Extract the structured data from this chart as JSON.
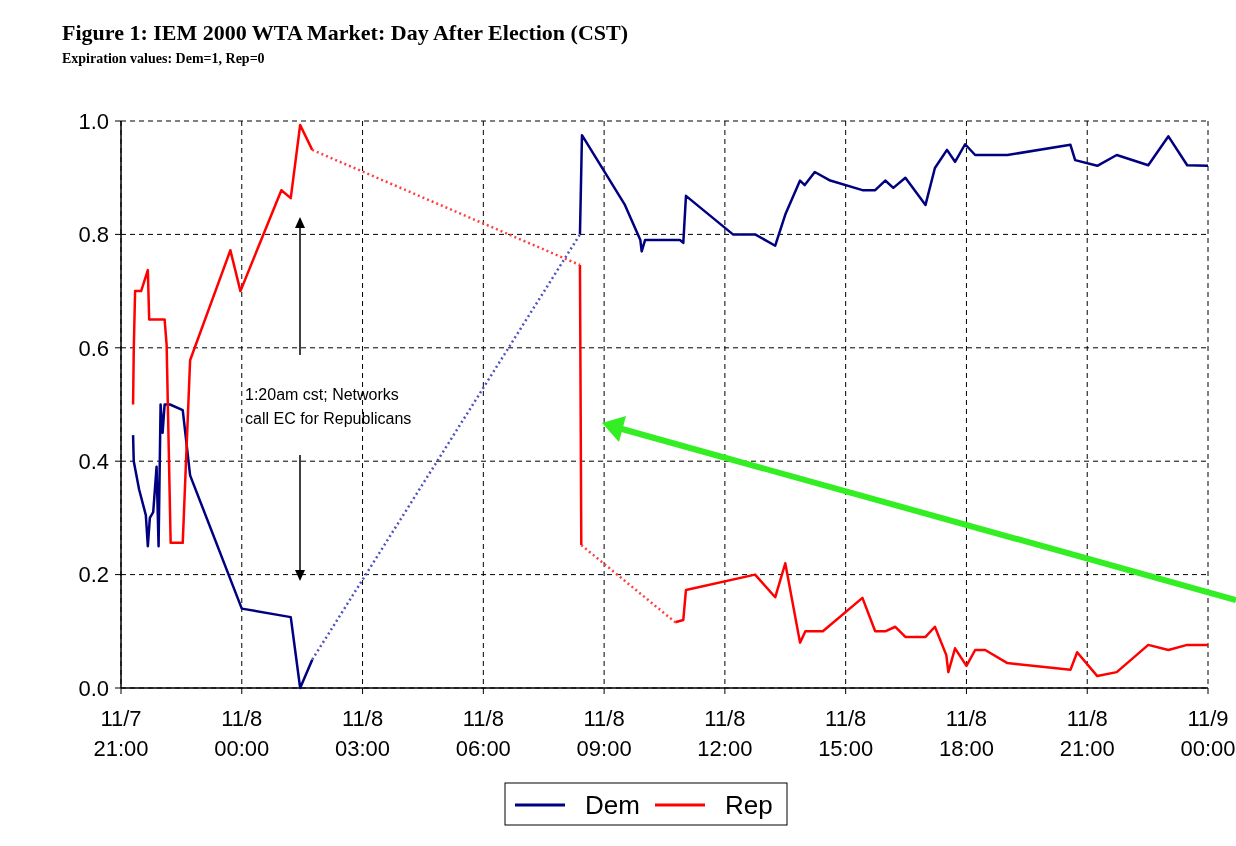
{
  "chart_data": {
    "type": "line",
    "title": "Figure 1: IEM 2000 WTA Market: Day After Election (CST)",
    "subtitle": "Expiration values: Dem=1, Rep=0",
    "annotations": [
      "1:20am cst; Networks\ncall EC for Republicans"
    ],
    "xlim": [
      "2000-11-07T21:00",
      "2000-11-09T00:00"
    ],
    "xticks": [
      {
        "value": "2000-11-07T21:00",
        "label": "11/7\n21:00"
      },
      {
        "value": "2000-11-08T00:00",
        "label": "11/8\n00:00"
      },
      {
        "value": "2000-11-08T03:00",
        "label": "11/8\n03:00"
      },
      {
        "value": "2000-11-08T06:00",
        "label": "11/8\n06:00"
      },
      {
        "value": "2000-11-08T09:00",
        "label": "11/8\n09:00"
      },
      {
        "value": "2000-11-08T12:00",
        "label": "11/8\n12:00"
      },
      {
        "value": "2000-11-08T15:00",
        "label": "11/8\n15:00"
      },
      {
        "value": "2000-11-08T18:00",
        "label": "11/8\n18:00"
      },
      {
        "value": "2000-11-08T21:00",
        "label": "11/8\n21:00"
      },
      {
        "value": "2000-11-09T00:00",
        "label": "11/9\n00:00"
      }
    ],
    "ylim": [
      0,
      1
    ],
    "yticks": [
      {
        "value": 0,
        "label": "0.0"
      },
      {
        "value": 0.2,
        "label": "0.2"
      },
      {
        "value": 0.4,
        "label": "0.4"
      },
      {
        "value": 0.6,
        "label": "0.6"
      },
      {
        "value": 0.8,
        "label": "0.8"
      },
      {
        "value": 1,
        "label": "1.0"
      }
    ],
    "grid": true,
    "legend": "bottom",
    "line_style": "solid",
    "marker": "none",
    "series": [
      {
        "name": "Dem",
        "color": "#000080",
        "x": [
          "2000-11-07T21:18",
          "2000-11-07T21:19",
          "2000-11-07T21:27",
          "2000-11-07T21:37",
          "2000-11-07T21:40",
          "2000-11-07T21:43",
          "2000-11-07T21:48",
          "2000-11-07T21:53",
          "2000-11-07T21:56",
          "2000-11-07T21:59",
          "2000-11-07T22:02",
          "2000-11-07T22:05",
          "2000-11-07T22:13",
          "2000-11-07T22:32",
          "2000-11-07T22:43",
          "2000-11-08T00:00",
          "2000-11-08T01:13",
          "2000-11-08T01:27",
          "2000-11-08T01:45",
          null,
          "2000-11-08T08:24",
          "2000-11-08T08:27",
          "2000-11-08T09:31",
          "2000-11-08T09:54",
          "2000-11-08T09:56",
          "2000-11-08T10:01",
          "2000-11-08T10:53",
          "2000-11-08T10:58",
          "2000-11-08T11:02",
          "2000-11-08T12:12",
          "2000-11-08T12:45",
          "2000-11-08T13:15",
          "2000-11-08T13:30",
          "2000-11-08T13:52",
          "2000-11-08T13:59",
          "2000-11-08T14:14",
          "2000-11-08T14:37",
          "2000-11-08T15:25",
          "2000-11-08T15:44",
          "2000-11-08T15:59",
          "2000-11-08T16:11",
          "2000-11-08T16:29",
          "2000-11-08T16:59",
          "2000-11-08T17:13",
          "2000-11-08T17:31",
          "2000-11-08T17:43",
          "2000-11-08T17:58",
          "2000-11-08T18:13",
          "2000-11-08T19:01",
          "2000-11-08T20:35",
          "2000-11-08T20:42",
          "2000-11-08T21:15",
          "2000-11-08T21:44",
          "2000-11-08T22:31",
          "2000-11-08T23:01",
          "2000-11-08T23:29",
          "2000-11-09T00:00"
        ],
        "values": [
          0.446,
          0.4,
          0.35,
          0.305,
          0.25,
          0.3,
          0.31,
          0.39,
          0.25,
          0.5,
          0.45,
          0.5,
          0.5,
          0.49,
          0.375,
          0.14,
          0.125,
          0.0,
          0.05,
          null,
          0.8,
          0.975,
          0.852,
          0.79,
          0.77,
          0.79,
          0.79,
          0.785,
          0.868,
          0.8,
          0.8,
          0.78,
          0.835,
          0.895,
          0.887,
          0.91,
          0.895,
          0.878,
          0.878,
          0.895,
          0.882,
          0.9,
          0.852,
          0.917,
          0.949,
          0.928,
          0.959,
          0.94,
          0.94,
          0.958,
          0.931,
          0.921,
          0.94,
          0.922,
          0.973,
          0.922,
          0.921
        ]
      },
      {
        "name": "Rep",
        "color": "#ff0000",
        "x": [
          "2000-11-07T21:18",
          "2000-11-07T21:19",
          "2000-11-07T21:21",
          "2000-11-07T21:30",
          "2000-11-07T21:40",
          "2000-11-07T21:42",
          "2000-11-07T22:05",
          "2000-11-07T22:08",
          "2000-11-07T22:14",
          "2000-11-07T22:32",
          "2000-11-07T22:43",
          "2000-11-07T23:43",
          "2000-11-07T23:58",
          "2000-11-08T00:59",
          "2000-11-08T01:13",
          "2000-11-08T01:27",
          "2000-11-08T01:45",
          null,
          "2000-11-08T08:24",
          "2000-11-08T08:26",
          null,
          "2000-11-08T10:46",
          "2000-11-08T10:58",
          "2000-11-08T11:02",
          "2000-11-08T12:45",
          "2000-11-08T13:15",
          "2000-11-08T13:30",
          "2000-11-08T13:52",
          "2000-11-08T14:00",
          "2000-11-08T14:26",
          "2000-11-08T15:25",
          "2000-11-08T15:44",
          "2000-11-08T15:59",
          "2000-11-08T16:14",
          "2000-11-08T16:29",
          "2000-11-08T16:59",
          "2000-11-08T17:13",
          "2000-11-08T17:30",
          "2000-11-08T17:33",
          "2000-11-08T17:43",
          "2000-11-08T18:00",
          "2000-11-08T18:13",
          "2000-11-08T18:28",
          "2000-11-08T19:01",
          "2000-11-08T20:35",
          "2000-11-08T20:45",
          "2000-11-08T21:15",
          "2000-11-08T21:44",
          "2000-11-08T22:31",
          "2000-11-08T23:01",
          "2000-11-08T23:29",
          "2000-11-09T00:00"
        ],
        "values": [
          0.5,
          0.596,
          0.7,
          0.7,
          0.737,
          0.65,
          0.65,
          0.605,
          0.256,
          0.256,
          0.578,
          0.772,
          0.7,
          0.878,
          0.864,
          0.993,
          0.949,
          null,
          0.746,
          0.252,
          null,
          0.116,
          0.12,
          0.173,
          0.2,
          0.16,
          0.22,
          0.08,
          0.1,
          0.1,
          0.159,
          0.1,
          0.1,
          0.108,
          0.09,
          0.09,
          0.108,
          0.058,
          0.028,
          0.07,
          0.039,
          0.067,
          0.067,
          0.044,
          0.032,
          0.063,
          0.021,
          0.028,
          0.076,
          0.067,
          0.076,
          0.076
        ]
      },
      {
        "color": "#5050c0",
        "line_style": "dotted",
        "x": [
          "2000-11-08T01:45",
          "2000-11-08T08:24"
        ],
        "values": [
          0.05,
          0.8
        ]
      },
      {
        "color": "#ff4040",
        "line_style": "dotted",
        "x": [
          "2000-11-08T01:45",
          "2000-11-08T08:24",
          null,
          "2000-11-08T08:26",
          "2000-11-08T10:46"
        ],
        "values": [
          0.949,
          0.746,
          null,
          0.252,
          0.116
        ]
      }
    ]
  }
}
